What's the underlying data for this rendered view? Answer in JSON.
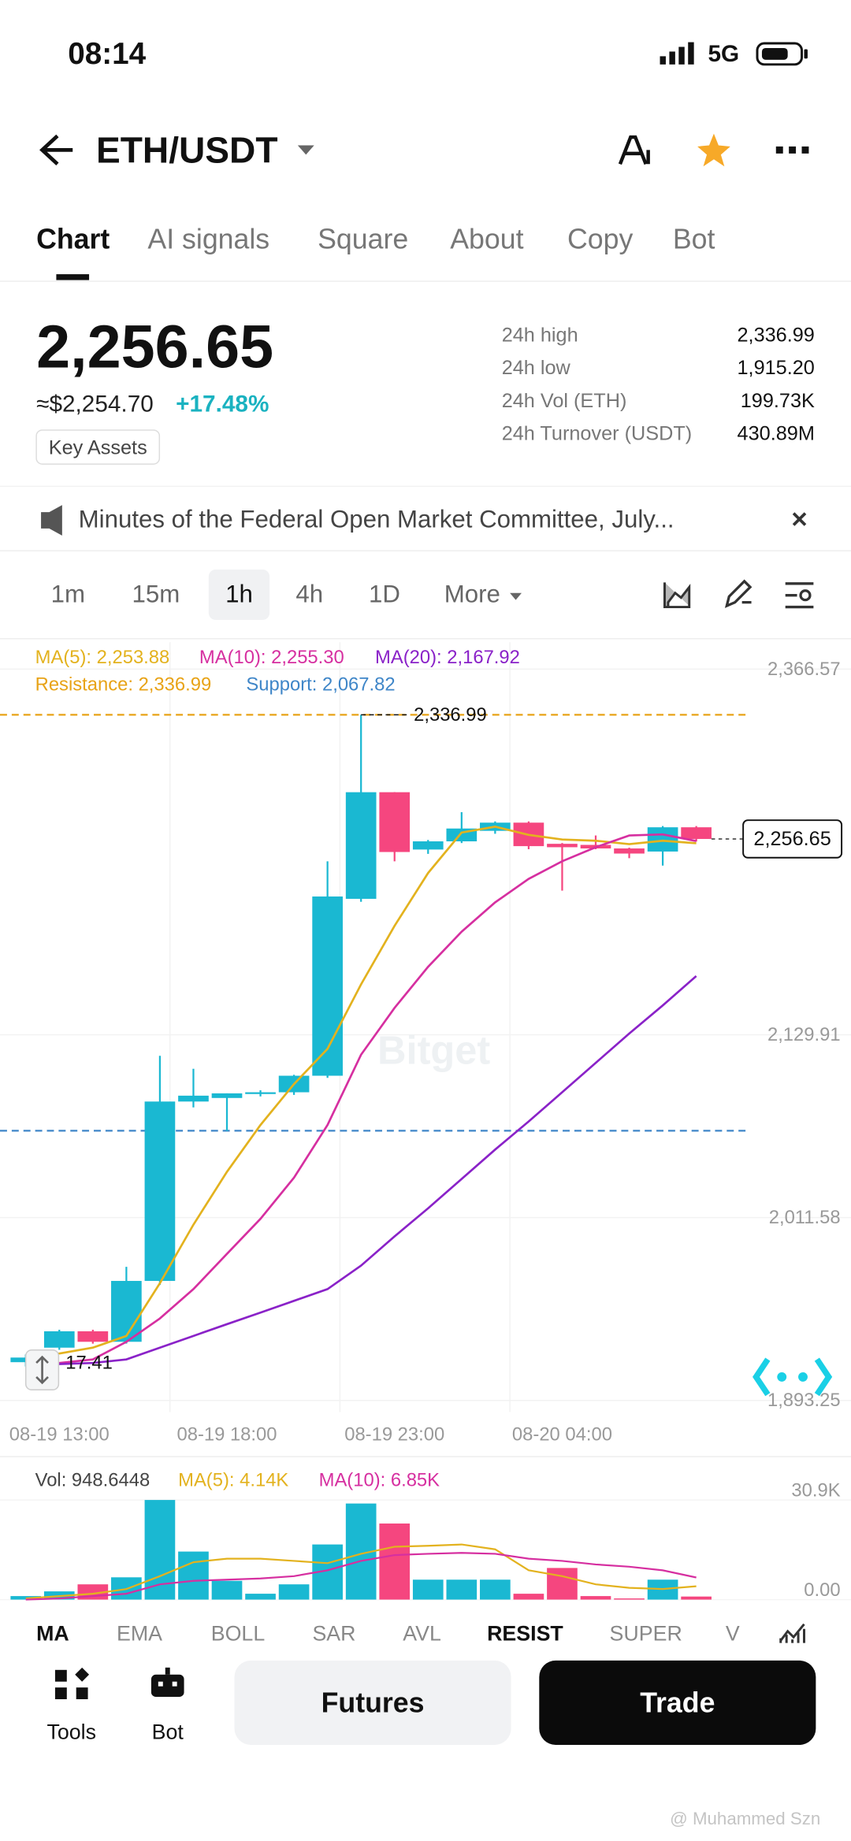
{
  "status_bar": {
    "time": "08:14",
    "network": "5G"
  },
  "header": {
    "pair": "ETH/USDT"
  },
  "tabs": [
    "Chart",
    "AI signals",
    "Square",
    "About",
    "Copy",
    "Bot"
  ],
  "price": {
    "last": "2,256.65",
    "usd": "≈$2,254.70",
    "change": "+17.48%",
    "key_assets": "Key Assets"
  },
  "stats": [
    {
      "label": "24h high",
      "value": "2,336.99"
    },
    {
      "label": "24h low",
      "value": "1,915.20"
    },
    {
      "label": "24h Vol (ETH)",
      "value": "199.73K"
    },
    {
      "label": "24h Turnover (USDT)",
      "value": "430.89M"
    }
  ],
  "news": "Minutes of the Federal Open Market Committee, July...",
  "intervals": [
    "1m",
    "15m",
    "1h",
    "4h",
    "1D",
    "More"
  ],
  "chart_data": {
    "type": "candlestick",
    "watermark": "Bitget",
    "up_color": "#1ab8d2",
    "down_color": "#f5467f",
    "categories": [
      null,
      "08-19 13:00",
      null,
      null,
      null,
      null,
      "08-19 18:00",
      null,
      null,
      null,
      null,
      "08-19 23:00",
      null,
      null,
      null,
      null,
      "08-20 04:00",
      null,
      null,
      null,
      null
    ],
    "ylim": [
      1885.7,
      2384.0
    ],
    "yticks": [
      {
        "value": 2366.57,
        "label": "2,366.57"
      },
      {
        "value": 2129.91,
        "label": "2,129.91"
      },
      {
        "value": 2011.58,
        "label": "2,011.58"
      },
      {
        "value": 1893.25,
        "label": "1,893.25"
      }
    ],
    "candles": {
      "open": [
        1918,
        1927.4,
        1938,
        1931.2,
        1970.6,
        2086.7,
        2089,
        2092,
        2092.7,
        2103.4,
        2217.9,
        2286.9,
        2249.8,
        2255.1,
        2261.9,
        2267.2,
        2253.5,
        2252.8,
        2250.5,
        2248.5,
        2264.2
      ],
      "high": [
        1923,
        1939,
        1939,
        1979.7,
        2116.3,
        2107.9,
        2092,
        2094,
        2104,
        2242.2,
        2336.99,
        2287,
        2256,
        2274,
        2268,
        2268,
        2254,
        2258.9,
        2251,
        2265,
        2265
      ],
      "low": [
        1915.2,
        1926,
        1930,
        1930,
        1968,
        2082.9,
        2067.7,
        2090,
        2091,
        2102,
        2216,
        2242.2,
        2247,
        2254,
        2260,
        2250,
        2223.2,
        2250,
        2244.2,
        2239.4,
        2255
      ],
      "close": [
        1921,
        1938,
        1931.2,
        1970.6,
        2086.7,
        2090.5,
        2092,
        2092.7,
        2103.4,
        2219.4,
        2286.9,
        2248.2,
        2255.1,
        2263.4,
        2267.2,
        2252,
        2251.3,
        2250.5,
        2247.2,
        2264.2,
        2256.65
      ]
    },
    "series": [
      {
        "name": "MA(5): 2,253.88",
        "color": "#e3b21e",
        "values": [
          1921.3,
          1923.6,
          1927.4,
          1935.0,
          1969.1,
          2007.0,
          2041.2,
          2071.5,
          2098.0,
          2120.8,
          2162.5,
          2200.4,
          2234.6,
          2260.8,
          2264.6,
          2259.3,
          2256.3,
          2255.5,
          2253.3,
          2255.5,
          2253.88
        ]
      },
      {
        "name": "MA(10): 2,255.30",
        "color": "#d62fa0",
        "values": [
          1916.0,
          1917.5,
          1919.8,
          1931.2,
          1946.3,
          1965.3,
          1988.1,
          2010.8,
          2037.4,
          2071.5,
          2117.0,
          2147.3,
          2173.9,
          2196.6,
          2215.6,
          2230.8,
          2242.2,
          2251.3,
          2258.9,
          2259.6,
          2255.3
        ]
      },
      {
        "name": "MA(20): 2,167.92",
        "color": "#8a22c8",
        "values": [
          1916.0,
          1916.8,
          1917.5,
          1919.8,
          1927.4,
          1935.0,
          1942.6,
          1950.1,
          1957.7,
          1965.3,
          1980.5,
          1999.4,
          2017.6,
          2036.6,
          2055.6,
          2073.8,
          2092.7,
          2111.7,
          2130.7,
          2148.9,
          2167.92
        ]
      }
    ],
    "resistance": {
      "label": "Resistance: 2,336.99",
      "value": 2336.99,
      "color": "#e8a317"
    },
    "support": {
      "label": "Support: 2,067.82",
      "value": 2067.82,
      "color": "#3f86c8"
    },
    "high_marker": {
      "value": 2336.99,
      "label": "2,336.99"
    },
    "last_price": {
      "value": 2256.65,
      "label": "2,256.65"
    },
    "low_marker": "17.41",
    "volume": {
      "label": "Vol: 948.6448",
      "ylim": [
        0,
        41.8
      ],
      "yticks": [
        {
          "value": 30.9,
          "label": "30.9K"
        },
        {
          "value": 0,
          "label": "0.00"
        }
      ],
      "values": [
        1.09,
        2.55,
        4.73,
        6.91,
        30.9,
        14.9,
        5.82,
        1.82,
        4.73,
        17.1,
        29.8,
        23.6,
        6.18,
        6.18,
        6.18,
        1.82,
        9.81,
        1.09,
        0.36,
        6.18,
        0.9486448
      ],
      "series": [
        {
          "name": "MA(5): 4.14K",
          "color": "#e3b21e",
          "values": [
            0.36,
            1.09,
            1.82,
            3.27,
            7.27,
            11.6,
            12.7,
            12.7,
            12.0,
            11.3,
            14.2,
            16.4,
            16.7,
            17.1,
            15.6,
            9.09,
            7.27,
            4.73,
            3.64,
            3.27,
            4.14
          ]
        },
        {
          "name": "MA(10): 6.85K",
          "color": "#d62fa0",
          "values": [
            0,
            0.36,
            1.09,
            1.82,
            4.73,
            5.82,
            6.18,
            6.54,
            7.27,
            9.09,
            12.0,
            13.8,
            14.2,
            14.5,
            14.2,
            12.7,
            12.0,
            10.9,
            10.2,
            9.09,
            6.85
          ]
        }
      ]
    }
  },
  "indicators": [
    "MA",
    "EMA",
    "BOLL",
    "SAR",
    "AVL",
    "RESIST",
    "SUPER",
    "V"
  ],
  "footer": {
    "tools": "Tools",
    "bot": "Bot",
    "futures": "Futures",
    "trade": "Trade"
  },
  "watermark": "@ Muhammed Szn"
}
